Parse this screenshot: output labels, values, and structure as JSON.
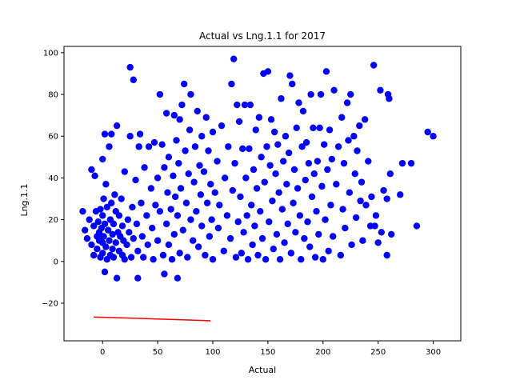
{
  "chart_data": {
    "type": "scatter",
    "title": "Actual vs Lng.1.1 for 2017",
    "xlabel": "Actual",
    "ylabel": "Lng.1.1",
    "xlim": [
      -35,
      325
    ],
    "ylim": [
      -38,
      103
    ],
    "xticks": [
      0,
      50,
      100,
      150,
      200,
      250,
      300
    ],
    "yticks": [
      -20,
      0,
      20,
      40,
      60,
      80,
      100
    ],
    "grid": false,
    "legend": "none",
    "colors": {
      "points": "#0000ff",
      "fit_line": "#ff0000"
    },
    "series": [
      {
        "kind": "scatter",
        "points": [
          [
            -18,
            24
          ],
          [
            -16,
            15
          ],
          [
            -14,
            11
          ],
          [
            -12,
            20
          ],
          [
            -10,
            44
          ],
          [
            -10,
            8
          ],
          [
            -8,
            3
          ],
          [
            -8,
            17
          ],
          [
            -7,
            41
          ],
          [
            -6,
            24
          ],
          [
            -5,
            12
          ],
          [
            -5,
            6
          ],
          [
            -4,
            19
          ],
          [
            -3,
            10
          ],
          [
            -3,
            14
          ],
          [
            -2,
            25
          ],
          [
            -2,
            2
          ],
          [
            -1,
            16
          ],
          [
            0,
            49
          ],
          [
            0,
            22
          ],
          [
            0,
            9
          ],
          [
            0,
            4
          ],
          [
            1,
            12
          ],
          [
            1,
            30
          ],
          [
            2,
            61
          ],
          [
            2,
            -5
          ],
          [
            2,
            18
          ],
          [
            3,
            37
          ],
          [
            3,
            7
          ],
          [
            4,
            1
          ],
          [
            4,
            26
          ],
          [
            5,
            15
          ],
          [
            6,
            55
          ],
          [
            6,
            10
          ],
          [
            7,
            20
          ],
          [
            7,
            3
          ],
          [
            8,
            61
          ],
          [
            8,
            28
          ],
          [
            9,
            13
          ],
          [
            9,
            6
          ],
          [
            10,
            2
          ],
          [
            10,
            18
          ],
          [
            11,
            32
          ],
          [
            12,
            9
          ],
          [
            12,
            24
          ],
          [
            13,
            65
          ],
          [
            13,
            -8
          ],
          [
            14,
            14
          ],
          [
            15,
            5
          ],
          [
            15,
            22
          ],
          [
            16,
            12
          ],
          [
            17,
            30
          ],
          [
            18,
            3
          ],
          [
            18,
            17
          ],
          [
            19,
            10
          ],
          [
            20,
            43
          ],
          [
            20,
            1
          ],
          [
            22,
            8
          ],
          [
            23,
            20
          ],
          [
            24,
            14
          ],
          [
            25,
            93
          ],
          [
            25,
            60
          ],
          [
            26,
            2
          ],
          [
            27,
            26
          ],
          [
            28,
            87
          ],
          [
            28,
            11
          ],
          [
            30,
            39
          ],
          [
            31,
            18
          ],
          [
            32,
            -8
          ],
          [
            32,
            5
          ],
          [
            33,
            55
          ],
          [
            34,
            61
          ],
          [
            35,
            28
          ],
          [
            36,
            12
          ],
          [
            37,
            2
          ],
          [
            38,
            45
          ],
          [
            40,
            22
          ],
          [
            41,
            8
          ],
          [
            42,
            55
          ],
          [
            44,
            35
          ],
          [
            45,
            16
          ],
          [
            46,
            1
          ],
          [
            47,
            57
          ],
          [
            48,
            27
          ],
          [
            50,
            10
          ],
          [
            50,
            40
          ],
          [
            52,
            80
          ],
          [
            52,
            24
          ],
          [
            54,
            56
          ],
          [
            55,
            3
          ],
          [
            56,
            45
          ],
          [
            56,
            -6
          ],
          [
            58,
            71
          ],
          [
            58,
            18
          ],
          [
            59,
            33
          ],
          [
            60,
            8
          ],
          [
            60,
            50
          ],
          [
            62,
            25
          ],
          [
            63,
            1
          ],
          [
            64,
            41
          ],
          [
            65,
            70
          ],
          [
            65,
            13
          ],
          [
            66,
            31
          ],
          [
            67,
            58
          ],
          [
            68,
            -8
          ],
          [
            68,
            22
          ],
          [
            69,
            47
          ],
          [
            70,
            4
          ],
          [
            70,
            68
          ],
          [
            71,
            35
          ],
          [
            72,
            75
          ],
          [
            73,
            15
          ],
          [
            74,
            85
          ],
          [
            75,
            53
          ],
          [
            76,
            28
          ],
          [
            77,
            2
          ],
          [
            78,
            42
          ],
          [
            79,
            63
          ],
          [
            80,
            20
          ],
          [
            80,
            80
          ],
          [
            82,
            10
          ],
          [
            83,
            38
          ],
          [
            84,
            55
          ],
          [
            85,
            24
          ],
          [
            86,
            72
          ],
          [
            87,
            7
          ],
          [
            88,
            46
          ],
          [
            89,
            32
          ],
          [
            90,
            60
          ],
          [
            90,
            17
          ],
          [
            92,
            43
          ],
          [
            93,
            3
          ],
          [
            94,
            69
          ],
          [
            95,
            28
          ],
          [
            96,
            53
          ],
          [
            97,
            12
          ],
          [
            98,
            37
          ],
          [
            99,
            20
          ],
          [
            100,
            62
          ],
          [
            100,
            1
          ],
          [
            102,
            33
          ],
          [
            104,
            48
          ],
          [
            105,
            16
          ],
          [
            106,
            27
          ],
          [
            108,
            65
          ],
          [
            110,
            5
          ],
          [
            111,
            40
          ],
          [
            113,
            22
          ],
          [
            114,
            55
          ],
          [
            116,
            11
          ],
          [
            117,
            85
          ],
          [
            118,
            34
          ],
          [
            119,
            97
          ],
          [
            120,
            47
          ],
          [
            121,
            2
          ],
          [
            122,
            75
          ],
          [
            123,
            19
          ],
          [
            124,
            67
          ],
          [
            125,
            31
          ],
          [
            126,
            4
          ],
          [
            127,
            54
          ],
          [
            128,
            14
          ],
          [
            129,
            75
          ],
          [
            130,
            40
          ],
          [
            131,
            22
          ],
          [
            132,
            1
          ],
          [
            133,
            54
          ],
          [
            134,
            75
          ],
          [
            135,
            27
          ],
          [
            136,
            8
          ],
          [
            137,
            44
          ],
          [
            138,
            17
          ],
          [
            139,
            63
          ],
          [
            140,
            35
          ],
          [
            141,
            3
          ],
          [
            142,
            69
          ],
          [
            143,
            24
          ],
          [
            144,
            50
          ],
          [
            145,
            11
          ],
          [
            146,
            90
          ],
          [
            147,
            38
          ],
          [
            148,
            1
          ],
          [
            149,
            55
          ],
          [
            150,
            91
          ],
          [
            151,
            19
          ],
          [
            152,
            46
          ],
          [
            153,
            68
          ],
          [
            154,
            29
          ],
          [
            155,
            6
          ],
          [
            156,
            62
          ],
          [
            157,
            42
          ],
          [
            158,
            13
          ],
          [
            159,
            56
          ],
          [
            160,
            33
          ],
          [
            161,
            1
          ],
          [
            162,
            78
          ],
          [
            163,
            25
          ],
          [
            164,
            48
          ],
          [
            165,
            9
          ],
          [
            166,
            60
          ],
          [
            167,
            37
          ],
          [
            168,
            18
          ],
          [
            169,
            52
          ],
          [
            170,
            89
          ],
          [
            171,
            4
          ],
          [
            172,
            85
          ],
          [
            173,
            28
          ],
          [
            174,
            44
          ],
          [
            175,
            14
          ],
          [
            176,
            64
          ],
          [
            177,
            35
          ],
          [
            178,
            76
          ],
          [
            179,
            22
          ],
          [
            180,
            1
          ],
          [
            181,
            55
          ],
          [
            182,
            72
          ],
          [
            183,
            11
          ],
          [
            184,
            39
          ],
          [
            185,
            57
          ],
          [
            186,
            19
          ],
          [
            187,
            47
          ],
          [
            188,
            7
          ],
          [
            189,
            80
          ],
          [
            190,
            31
          ],
          [
            191,
            64
          ],
          [
            192,
            42
          ],
          [
            193,
            2
          ],
          [
            194,
            24
          ],
          [
            195,
            48
          ],
          [
            196,
            13
          ],
          [
            197,
            64
          ],
          [
            198,
            80
          ],
          [
            199,
            36
          ],
          [
            200,
            1
          ],
          [
            201,
            56
          ],
          [
            202,
            20
          ],
          [
            203,
            91
          ],
          [
            204,
            44
          ],
          [
            205,
            5
          ],
          [
            206,
            63
          ],
          [
            207,
            27
          ],
          [
            208,
            49
          ],
          [
            209,
            12
          ],
          [
            210,
            82
          ],
          [
            212,
            37
          ],
          [
            214,
            55
          ],
          [
            216,
            3
          ],
          [
            217,
            69
          ],
          [
            218,
            25
          ],
          [
            219,
            47
          ],
          [
            220,
            16
          ],
          [
            222,
            76
          ],
          [
            223,
            58
          ],
          [
            224,
            33
          ],
          [
            225,
            80
          ],
          [
            226,
            8
          ],
          [
            228,
            60
          ],
          [
            229,
            42
          ],
          [
            230,
            21
          ],
          [
            231,
            53
          ],
          [
            233,
            65
          ],
          [
            234,
            29
          ],
          [
            235,
            38
          ],
          [
            236,
            10
          ],
          [
            238,
            68
          ],
          [
            239,
            27
          ],
          [
            241,
            48
          ],
          [
            243,
            17
          ],
          [
            244,
            31
          ],
          [
            246,
            94
          ],
          [
            247,
            17
          ],
          [
            248,
            22
          ],
          [
            250,
            9
          ],
          [
            252,
            82
          ],
          [
            253,
            14
          ],
          [
            255,
            34
          ],
          [
            258,
            3
          ],
          [
            258,
            30
          ],
          [
            259,
            80
          ],
          [
            260,
            78
          ],
          [
            261,
            42
          ],
          [
            262,
            13
          ],
          [
            270,
            32
          ],
          [
            272,
            47
          ],
          [
            280,
            47
          ],
          [
            285,
            17
          ],
          [
            295,
            62
          ],
          [
            300,
            60
          ]
        ]
      },
      {
        "kind": "line",
        "points": [
          [
            -8,
            -26.6
          ],
          [
            98,
            -28.4
          ]
        ]
      }
    ]
  }
}
